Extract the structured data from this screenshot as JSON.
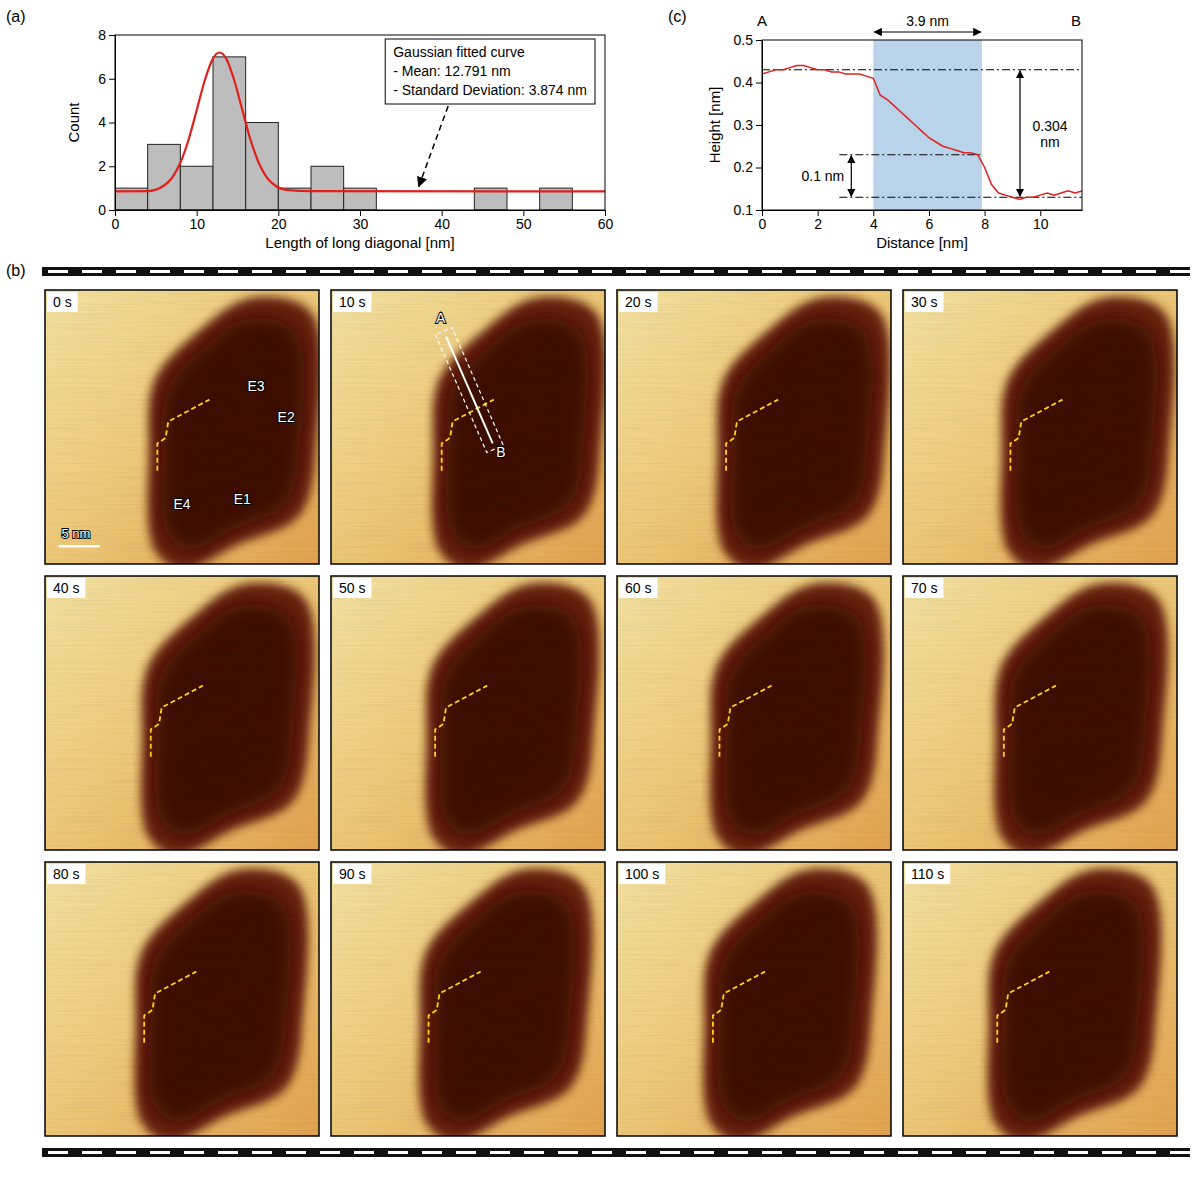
{
  "chart_data": [
    {
      "type": "histogram",
      "panel": "(a)",
      "x_label": "Length of long diagonal [nm]",
      "y_label": "Count",
      "bins": [
        0,
        4,
        8,
        12,
        16,
        20,
        24,
        28,
        32,
        36,
        40,
        44,
        48,
        52,
        56
      ],
      "values": [
        1,
        3,
        2,
        7,
        4,
        1,
        2,
        1,
        0,
        0,
        0,
        1,
        0,
        1
      ],
      "color": "#bdbdbd",
      "xlim": [
        0,
        60
      ],
      "xticks": [
        0,
        10,
        20,
        30,
        40,
        50,
        60
      ],
      "ylim": [
        0,
        8
      ],
      "yticks": [
        0,
        2,
        4,
        6,
        8
      ],
      "grid": false,
      "series": [
        {
          "name": "Gaussian fitted curve",
          "type": "line",
          "color": "#e0201b",
          "x": [
            0,
            4,
            6,
            7,
            8,
            9,
            10,
            11,
            12,
            12.8,
            13.6,
            14.6,
            15.6,
            16.6,
            17.6,
            18.6,
            19.6,
            21,
            24,
            60
          ],
          "values": [
            0.85,
            0.86,
            1.12,
            1.48,
            2.16,
            3.2,
            4.56,
            5.93,
            6.93,
            7.2,
            6.93,
            5.93,
            4.56,
            3.2,
            2.16,
            1.48,
            1.12,
            0.92,
            0.86,
            0.85
          ]
        }
      ],
      "annotations": [
        "- Mean: 12.791 nm",
        "- Standard Deviation: 3.874 nm"
      ]
    },
    {
      "type": "line",
      "panel": "(c)",
      "x_label": "Distance [nm]",
      "y_label": "Height [nm]",
      "start_label": "A",
      "end_label": "B",
      "color": "#e0201b",
      "x": [
        0,
        0.25,
        0.5,
        0.75,
        1,
        1.25,
        1.5,
        1.75,
        2,
        2.25,
        2.5,
        2.75,
        3,
        3.25,
        3.5,
        3.75,
        4,
        4.25,
        4.5,
        4.75,
        5,
        5.25,
        5.5,
        5.75,
        6,
        6.25,
        6.5,
        6.75,
        7,
        7.25,
        7.5,
        7.75,
        8,
        8.25,
        8.5,
        8.75,
        9,
        9.25,
        9.5,
        9.75,
        10,
        10.25,
        10.5,
        10.75,
        11,
        11.25,
        11.5
      ],
      "values": [
        0.42,
        0.425,
        0.43,
        0.43,
        0.435,
        0.44,
        0.44,
        0.435,
        0.43,
        0.43,
        0.425,
        0.425,
        0.42,
        0.42,
        0.42,
        0.415,
        0.41,
        0.37,
        0.36,
        0.345,
        0.33,
        0.315,
        0.3,
        0.285,
        0.27,
        0.26,
        0.25,
        0.245,
        0.24,
        0.235,
        0.235,
        0.23,
        0.2,
        0.16,
        0.14,
        0.135,
        0.13,
        0.125,
        0.13,
        0.13,
        0.135,
        0.14,
        0.135,
        0.14,
        0.145,
        0.14,
        0.145
      ],
      "xlim": [
        0,
        11.5
      ],
      "xticks": [
        0,
        2,
        4,
        6,
        8,
        10
      ],
      "ylim": [
        0.1,
        0.5
      ],
      "yticks": [
        0.1,
        0.2,
        0.3,
        0.4,
        0.5
      ],
      "grid": false,
      "reference_lines": [
        0.43,
        0.23,
        0.13
      ],
      "highlight": {
        "from": 4,
        "to": 7.9,
        "label": "3.9 nm"
      },
      "measurements": [
        {
          "from": 0.13,
          "to": 0.43,
          "label": "0.304 nm"
        },
        {
          "from": 0.13,
          "to": 0.23,
          "label": "0.1 nm"
        }
      ]
    }
  ],
  "panel_b": {
    "panel": "(b)",
    "frames": [
      "0 s",
      "10 s",
      "20 s",
      "30 s",
      "40 s",
      "50 s",
      "60 s",
      "70 s",
      "80 s",
      "90 s",
      "100 s",
      "110 s"
    ],
    "edge_labels": [
      "E1",
      "E2",
      "E3",
      "E4"
    ],
    "profile_labels": [
      "A",
      "B"
    ],
    "scale_bar": "5 nm"
  }
}
